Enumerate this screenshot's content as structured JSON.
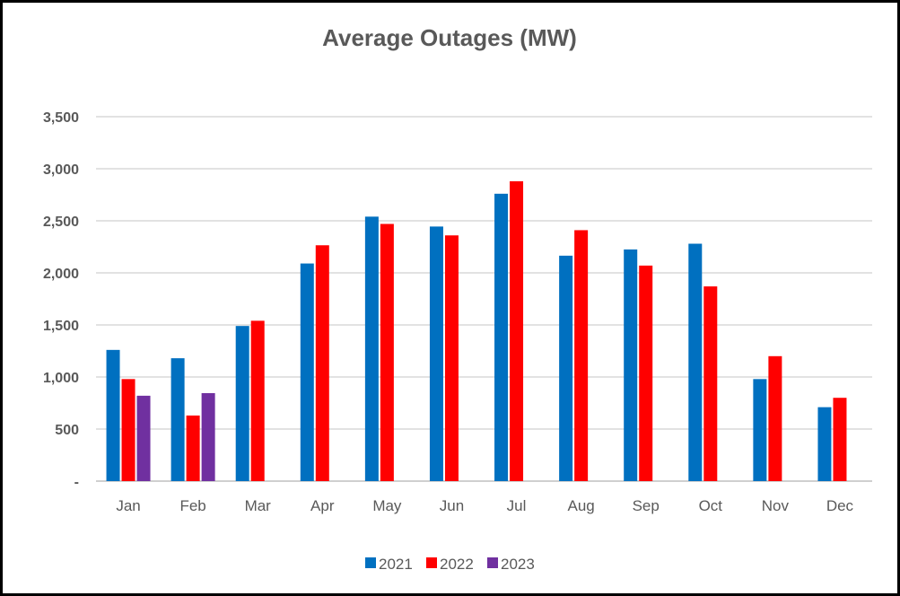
{
  "chart_data": {
    "type": "bar",
    "title": "Average Outages (MW)",
    "xlabel": "",
    "ylabel": "",
    "categories": [
      "Jan",
      "Feb",
      "Mar",
      "Apr",
      "May",
      "Jun",
      "Jul",
      "Aug",
      "Sep",
      "Oct",
      "Nov",
      "Dec"
    ],
    "series": [
      {
        "name": "2021",
        "color": "#0070C0",
        "values": [
          1260,
          1180,
          1490,
          2090,
          2540,
          2445,
          2760,
          2165,
          2225,
          2280,
          980,
          710
        ]
      },
      {
        "name": "2022",
        "color": "#FF0000",
        "values": [
          980,
          630,
          1540,
          2265,
          2470,
          2360,
          2880,
          2410,
          2070,
          1870,
          1200,
          800
        ]
      },
      {
        "name": "2023",
        "color": "#7030A0",
        "values": [
          820,
          845,
          null,
          null,
          null,
          null,
          null,
          null,
          null,
          null,
          null,
          null
        ]
      }
    ],
    "ylim": [
      0,
      3500
    ],
    "yticks": [
      0,
      500,
      1000,
      1500,
      2000,
      2500,
      3000,
      3500
    ],
    "ytick_labels": [
      "-",
      "500",
      "1,000",
      "1,500",
      "2,000",
      "2,500",
      "3,000",
      "3,500"
    ],
    "grid": true,
    "legend_position": "bottom"
  }
}
